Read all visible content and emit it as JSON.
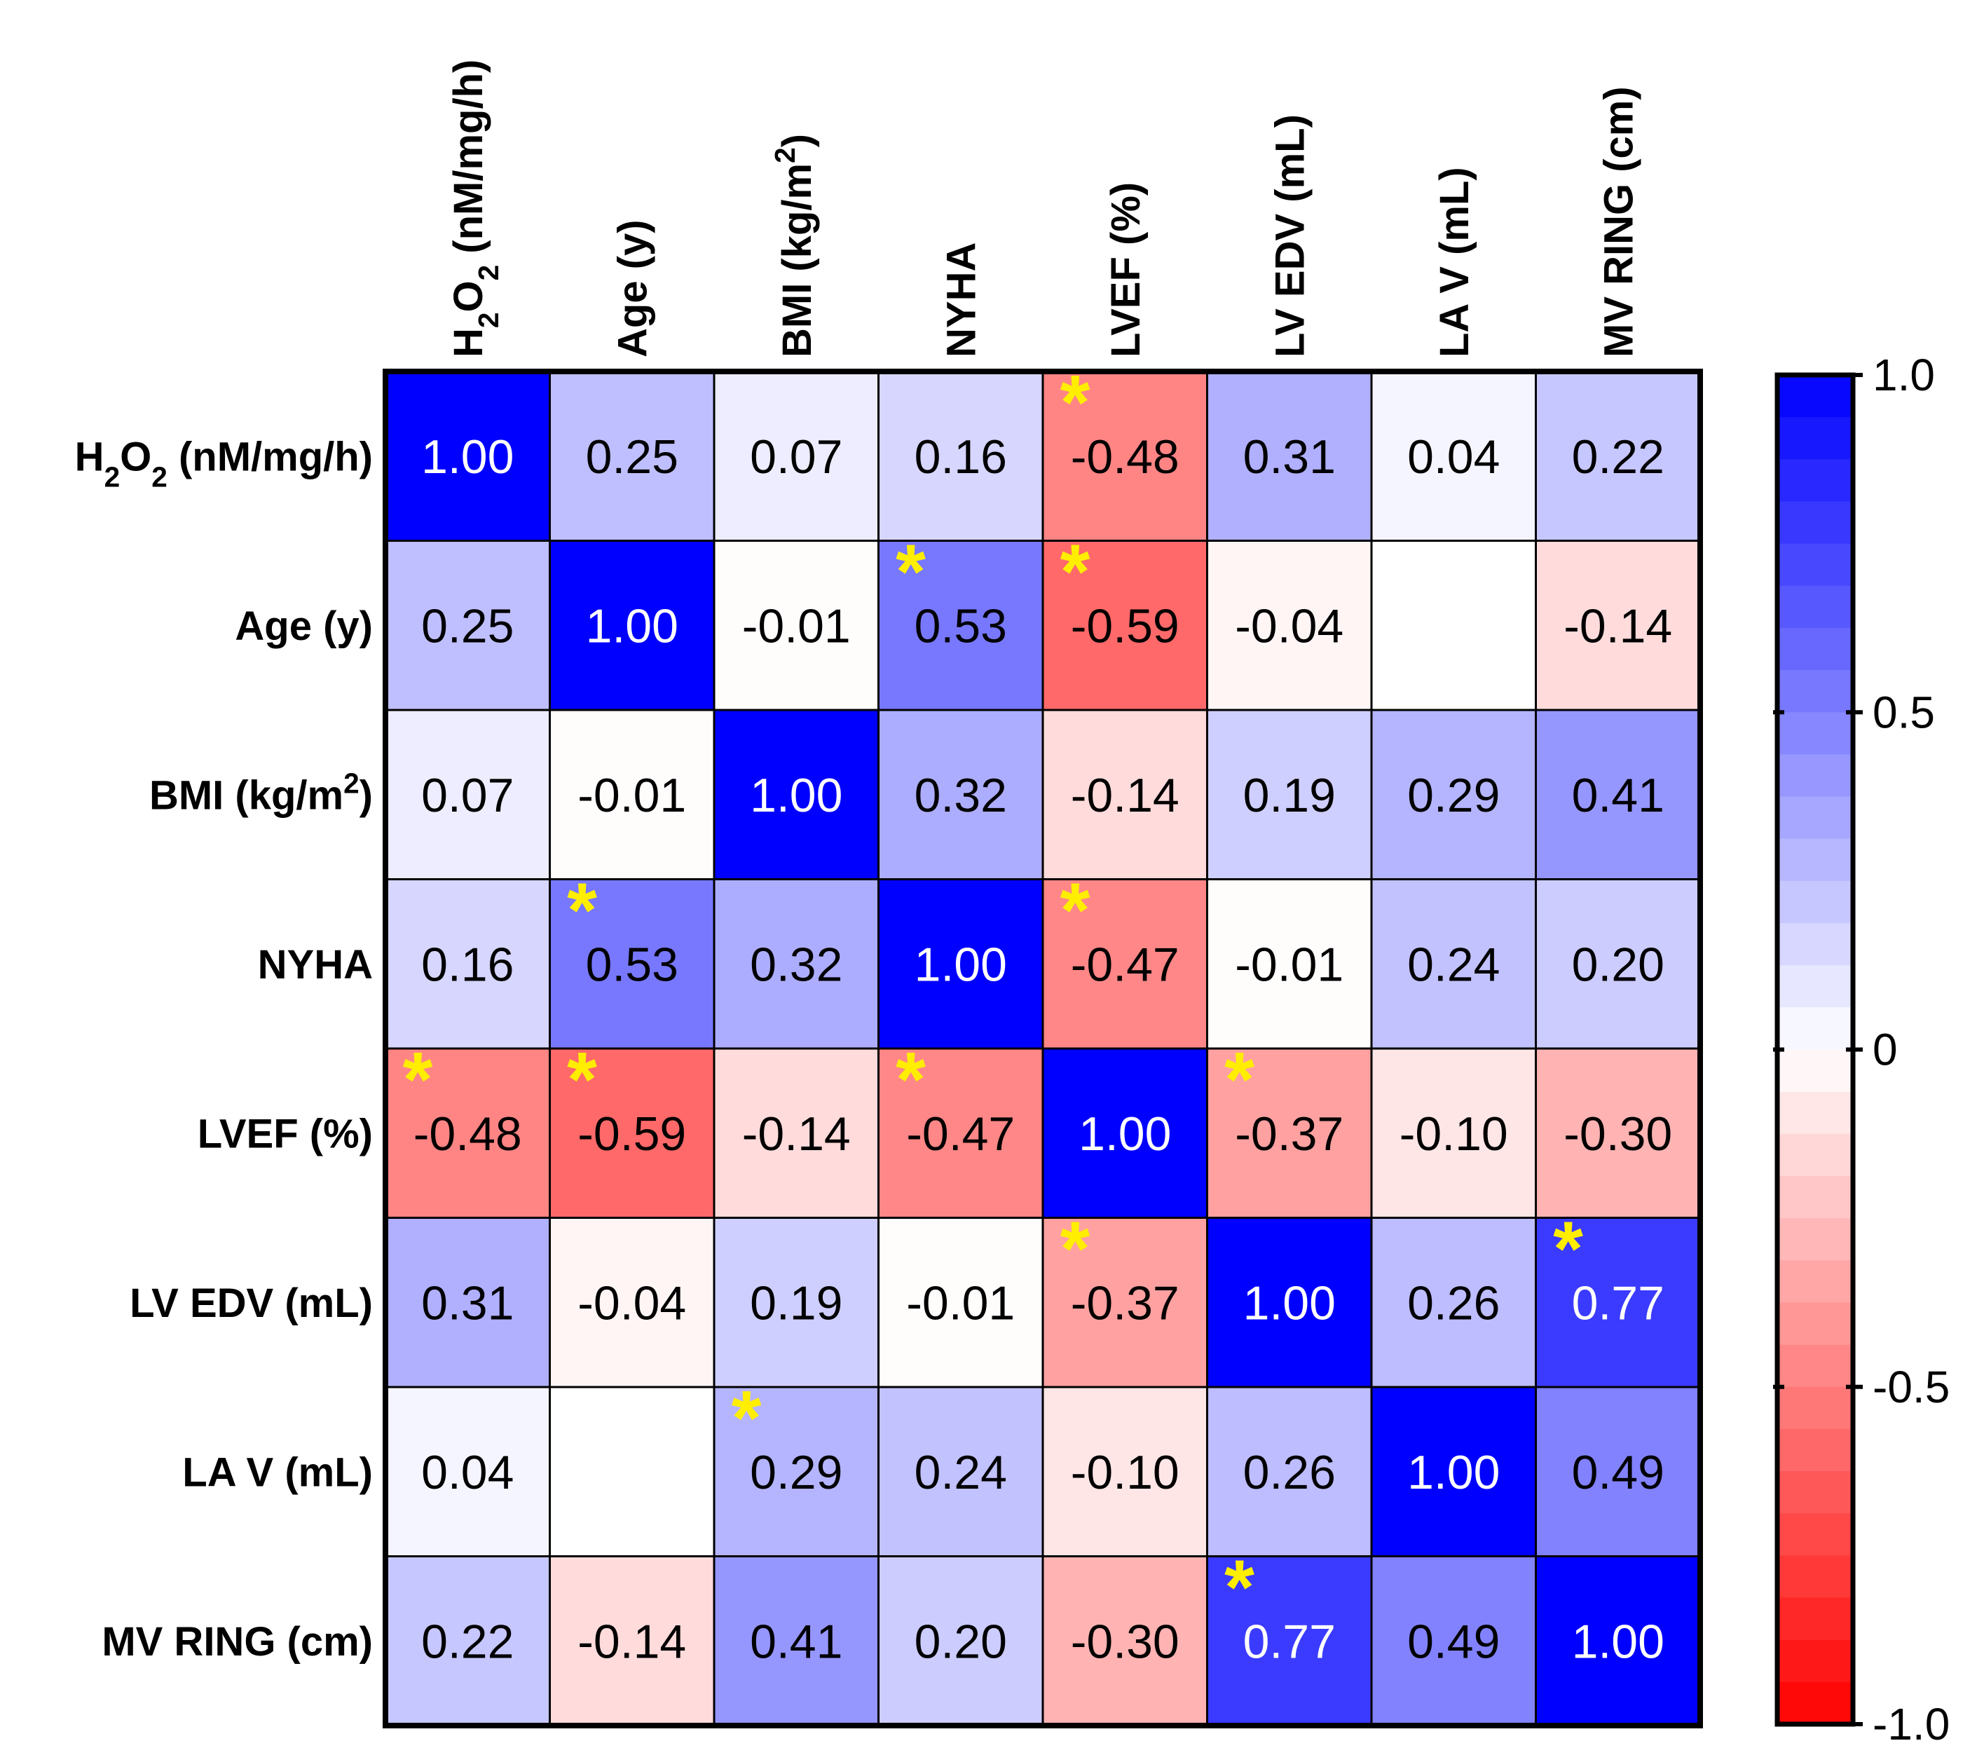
{
  "chart_data": {
    "type": "heatmap",
    "title": "",
    "variables": [
      {
        "name": "H2O2",
        "label_html": "H<tspan baseline-shift=\"sub\" font-size=\"70%\">2</tspan>O<tspan baseline-shift=\"sub\" font-size=\"70%\">2</tspan> (nM/mg/h)",
        "label": "H2O2 (nM/mg/h)"
      },
      {
        "name": "Age",
        "label": "Age (y)"
      },
      {
        "name": "BMI",
        "label": "BMI (kg/m2)"
      },
      {
        "name": "NYHA",
        "label": "NYHA"
      },
      {
        "name": "LVEF",
        "label": "LVEF (%)"
      },
      {
        "name": "LVEDV",
        "label": "LV EDV (mL)"
      },
      {
        "name": "LAV",
        "label": "LA V (mL)"
      },
      {
        "name": "MVRING",
        "label": "MV RING (cm)"
      }
    ],
    "matrix": [
      [
        1.0,
        0.25,
        0.07,
        0.16,
        -0.48,
        0.31,
        0.04,
        0.22
      ],
      [
        0.25,
        1.0,
        -0.01,
        0.53,
        -0.59,
        -0.04,
        null,
        -0.14
      ],
      [
        0.07,
        -0.01,
        1.0,
        0.32,
        -0.14,
        0.19,
        0.29,
        0.41
      ],
      [
        0.16,
        0.53,
        0.32,
        1.0,
        -0.47,
        -0.01,
        0.24,
        0.2
      ],
      [
        -0.48,
        -0.59,
        -0.14,
        -0.47,
        1.0,
        -0.37,
        -0.1,
        -0.3
      ],
      [
        0.31,
        -0.04,
        0.19,
        -0.01,
        -0.37,
        1.0,
        0.26,
        0.77
      ],
      [
        0.04,
        null,
        0.29,
        0.24,
        -0.1,
        0.26,
        1.0,
        0.49
      ],
      [
        0.22,
        -0.14,
        0.41,
        0.2,
        -0.3,
        0.77,
        0.49,
        1.0
      ]
    ],
    "cell_text": [
      [
        "1.00",
        "0.25",
        "0.07",
        "0.16",
        "-0.48",
        "0.31",
        "0.04",
        "0.22"
      ],
      [
        "0.25",
        "1.00",
        "-0.01",
        "0.53",
        "-0.59",
        "-0.04",
        "",
        "-0.14"
      ],
      [
        "0.07",
        "-0.01",
        "1.00",
        "0.32",
        "-0.14",
        "0.19",
        "0.29",
        "0.41"
      ],
      [
        "0.16",
        "0.53",
        "0.32",
        "1.00",
        "-0.47",
        "-0.01",
        "0.24",
        "0.20"
      ],
      [
        "-0.48",
        "-0.59",
        "-0.14",
        "-0.47",
        "1.00",
        "-0.37",
        "-0.10",
        "-0.30"
      ],
      [
        "0.31",
        "-0.04",
        "0.19",
        "-0.01",
        "-0.37",
        "1.00",
        "0.26",
        "0.77"
      ],
      [
        "0.04",
        "",
        "0.29",
        "0.24",
        "-0.10",
        "0.26",
        "1.00",
        "0.49"
      ],
      [
        "0.22",
        "-0.14",
        "0.41",
        "0.20",
        "-0.30",
        "0.77",
        "0.49",
        "1.00"
      ]
    ],
    "significant": [
      [
        0,
        4
      ],
      [
        1,
        3
      ],
      [
        1,
        4
      ],
      [
        3,
        1
      ],
      [
        3,
        4
      ],
      [
        4,
        0
      ],
      [
        4,
        1
      ],
      [
        4,
        3
      ],
      [
        4,
        5
      ],
      [
        5,
        4
      ],
      [
        5,
        7
      ],
      [
        6,
        2
      ],
      [
        7,
        5
      ]
    ],
    "significance_marker": "*",
    "colorbar": {
      "min": -1.0,
      "max": 1.0,
      "ticks": [
        1.0,
        0.5,
        0,
        -0.5,
        -1.0
      ],
      "tick_labels": [
        "1.0",
        "0.5",
        "0",
        "-0.5",
        "-1.0"
      ],
      "steps": 32
    },
    "colors": {
      "positive": "#0000ff",
      "negative": "#ff0000",
      "neutral": "#ffffff",
      "marker": "#ffee00",
      "border": "#000000",
      "text_dark": "#000000",
      "text_light": "#ffffff"
    }
  }
}
